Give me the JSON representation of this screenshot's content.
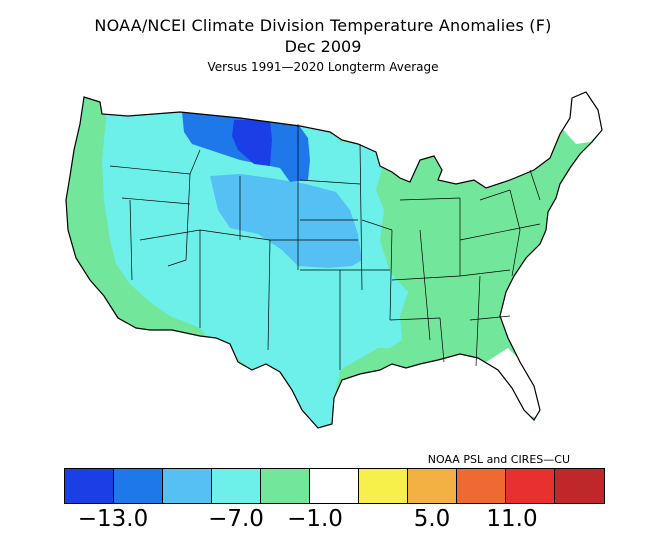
{
  "title": {
    "line1": "NOAA/NCEI Climate Division Temperature Anomalies (F)",
    "line2": "Dec 2009",
    "line3": "Versus 1991—2020 Longterm Average"
  },
  "credit": "NOAA PSL and CIRES—CU",
  "legend": {
    "colors": [
      "#1a3fe6",
      "#1f78ea",
      "#55c0f3",
      "#6ef0ea",
      "#72e69a",
      "#ffffff",
      "#f8f04a",
      "#f3b043",
      "#ef6a33",
      "#e8302e",
      "#c0272b"
    ],
    "ticks": [
      "−13.0",
      "−7.0",
      "−1.0",
      "5.0",
      "11.0"
    ]
  },
  "map": {
    "regions": [
      {
        "name": "northern-plains-core",
        "color": "#1a3fe6"
      },
      {
        "name": "northern-plains-ring",
        "color": "#1f78ea"
      },
      {
        "name": "central-plains",
        "color": "#55c0f3"
      },
      {
        "name": "west-and-south-plains",
        "color": "#6ef0ea"
      },
      {
        "name": "east-and-pacific",
        "color": "#72e69a"
      },
      {
        "name": "florida-and-new-england",
        "color": "#ffffff"
      }
    ]
  }
}
